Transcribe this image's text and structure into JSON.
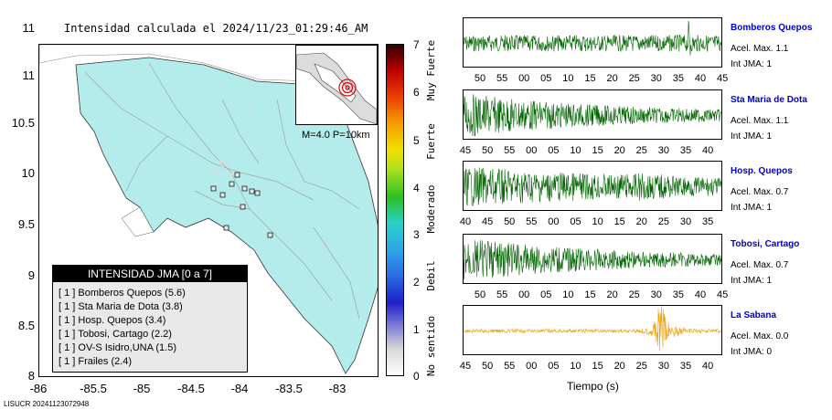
{
  "map": {
    "title": "Intensidad calculada el 2024/11/23_01:29:46_AM",
    "y_ticks": [
      "11",
      "10.5",
      "10",
      "9.5",
      "9",
      "8.5",
      "8"
    ],
    "x_ticks": [
      "-86",
      "-85.5",
      "-85",
      "-84.5",
      "-84",
      "-83.5",
      "-83"
    ],
    "inset_label": "M=4.0 P=10km",
    "land_color": "#b4ecec",
    "legend": {
      "title": "INTENSIDAD JMA [0 a 7]",
      "items": [
        "[ 1 ]  Bomberos Quepos (5.6)",
        "[ 1 ]  Sta Maria de Dota (3.8)",
        "[ 1 ]  Hosp. Quepos (3.4)",
        "[ 1 ]  Tobosi, Cartago (2.2)",
        "[ 1 ]  OV-S Isidro,UNA (1.5)",
        "[ 1 ]  Frailes (2.4)"
      ]
    }
  },
  "colorbar": {
    "numbers": [
      "7",
      "6",
      "5",
      "4",
      "3",
      "2",
      "1",
      "0"
    ],
    "words": [
      "Muy Fuerte",
      "Fuerte",
      "Moderado",
      "Debil",
      "No sentido"
    ]
  },
  "stations": [
    {
      "name": "Bomberos Quepos",
      "accel": "Acel. Max. 1.1",
      "int": "Int JMA: 1",
      "color": "#006400",
      "ticks": [
        "50",
        "55",
        "00",
        "05",
        "10",
        "15",
        "20",
        "25",
        "30",
        "35",
        "40",
        "45"
      ]
    },
    {
      "name": "Sta Maria de Dota",
      "accel": "Acel. Max. 1.1",
      "int": "Int JMA: 1",
      "color": "#006400",
      "ticks": [
        "45",
        "50",
        "55",
        "00",
        "05",
        "10",
        "15",
        "20",
        "25",
        "30",
        "35",
        "40"
      ]
    },
    {
      "name": "Hosp. Quepos",
      "accel": "Acel. Max. 0.7",
      "int": "Int JMA: 1",
      "color": "#006400",
      "ticks": [
        "40",
        "45",
        "50",
        "55",
        "00",
        "05",
        "10",
        "15",
        "20",
        "25",
        "30",
        "35"
      ]
    },
    {
      "name": "Tobosi, Cartago",
      "accel": "Acel. Max. 0.7",
      "int": "Int JMA: 1",
      "color": "#006400",
      "ticks": [
        "50",
        "55",
        "00",
        "05",
        "10",
        "15",
        "20",
        "25",
        "30",
        "35",
        "40",
        "45"
      ]
    },
    {
      "name": "La Sabana",
      "accel": "Acel. Max. 0.0",
      "int": "Int JMA: 0",
      "color": "#f0a000",
      "ticks": [
        "45",
        "50",
        "55",
        "00",
        "05",
        "10",
        "15",
        "20",
        "25",
        "30",
        "35",
        "40"
      ]
    }
  ],
  "xlabel": "Tiempo (s)",
  "footer": "LISUCR 20241123072948"
}
